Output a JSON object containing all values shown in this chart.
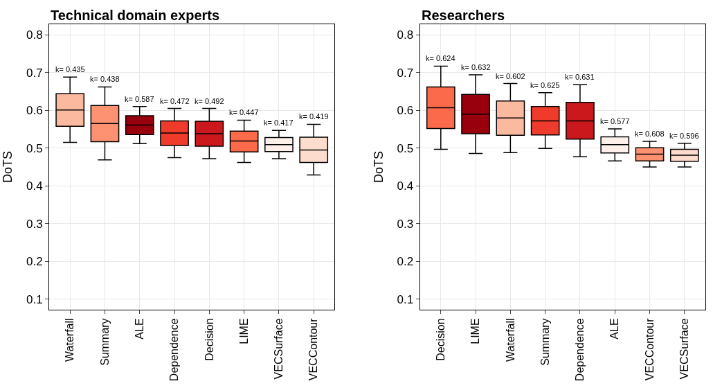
{
  "chart_data": [
    {
      "type": "box",
      "title": "Technical domain experts",
      "ylabel": "DoTS",
      "categories": [
        "Waterfall",
        "Summary",
        "ALE",
        "Dependence",
        "Decision",
        "LIME",
        "VECSurface",
        "VECContour"
      ],
      "colors": [
        "#fbb99f",
        "#fc9272",
        "#99000d",
        "#ef3b2c",
        "#cb181d",
        "#fb6a4a",
        "#fff0eb",
        "#fcdccd"
      ],
      "boxes": [
        {
          "low": 0.515,
          "q1": 0.558,
          "median": 0.601,
          "q3": 0.644,
          "high": 0.688
        },
        {
          "low": 0.469,
          "q1": 0.517,
          "median": 0.565,
          "q3": 0.613,
          "high": 0.662
        },
        {
          "low": 0.512,
          "q1": 0.536,
          "median": 0.561,
          "q3": 0.586,
          "high": 0.61
        },
        {
          "low": 0.475,
          "q1": 0.507,
          "median": 0.54,
          "q3": 0.572,
          "high": 0.605
        },
        {
          "low": 0.472,
          "q1": 0.505,
          "median": 0.538,
          "q3": 0.571,
          "high": 0.605
        },
        {
          "low": 0.462,
          "q1": 0.49,
          "median": 0.519,
          "q3": 0.545,
          "high": 0.574
        },
        {
          "low": 0.472,
          "q1": 0.491,
          "median": 0.509,
          "q3": 0.528,
          "high": 0.547
        },
        {
          "low": 0.429,
          "q1": 0.462,
          "median": 0.495,
          "q3": 0.529,
          "high": 0.563
        }
      ],
      "annotations": [
        {
          "text": "k= 0.435",
          "x": "Waterfall",
          "y": 0.688
        },
        {
          "text": "k= 0.438",
          "x": "Summary",
          "y": 0.662
        },
        {
          "text": "k= 0.587",
          "x": "ALE",
          "y": 0.61
        },
        {
          "text": "k= 0.472",
          "x": "Dependence",
          "y": 0.605
        },
        {
          "text": "k= 0.492",
          "x": "Decision",
          "y": 0.605
        },
        {
          "text": "k= 0.447",
          "x": "LIME",
          "y": 0.574
        },
        {
          "text": "k= 0.417",
          "x": "VECSurface",
          "y": 0.547
        },
        {
          "text": "k= 0.419",
          "x": "VECContour",
          "y": 0.563
        }
      ],
      "ylim": [
        0.072,
        0.828
      ],
      "yticks": [
        0.1,
        0.2,
        0.3,
        0.4,
        0.5,
        0.6,
        0.7,
        0.8
      ],
      "grid": true
    },
    {
      "type": "box",
      "title": "Researchers",
      "ylabel": "DoTS",
      "categories": [
        "Decision",
        "LIME",
        "Waterfall",
        "Summary",
        "Dependence",
        "ALE",
        "VECContour",
        "VECSurface"
      ],
      "colors": [
        "#fb6a4a",
        "#99000d",
        "#fbb99f",
        "#ef3b2c",
        "#cb181d",
        "#fff0eb",
        "#fc9272",
        "#fcdccd"
      ],
      "boxes": [
        {
          "low": 0.497,
          "q1": 0.552,
          "median": 0.607,
          "q3": 0.662,
          "high": 0.717
        },
        {
          "low": 0.486,
          "q1": 0.538,
          "median": 0.59,
          "q3": 0.642,
          "high": 0.694
        },
        {
          "low": 0.488,
          "q1": 0.534,
          "median": 0.58,
          "q3": 0.625,
          "high": 0.671
        },
        {
          "low": 0.499,
          "q1": 0.535,
          "median": 0.572,
          "q3": 0.61,
          "high": 0.647
        },
        {
          "low": 0.477,
          "q1": 0.524,
          "median": 0.572,
          "q3": 0.621,
          "high": 0.668
        },
        {
          "low": 0.466,
          "q1": 0.487,
          "median": 0.509,
          "q3": 0.53,
          "high": 0.551
        },
        {
          "low": 0.45,
          "q1": 0.466,
          "median": 0.484,
          "q3": 0.501,
          "high": 0.518
        },
        {
          "low": 0.45,
          "q1": 0.465,
          "median": 0.481,
          "q3": 0.497,
          "high": 0.513
        }
      ],
      "annotations": [
        {
          "text": "k= 0.624",
          "x": "Decision",
          "y": 0.717
        },
        {
          "text": "k= 0.632",
          "x": "LIME",
          "y": 0.694
        },
        {
          "text": "k= 0.602",
          "x": "Waterfall",
          "y": 0.671
        },
        {
          "text": "k= 0.625",
          "x": "Summary",
          "y": 0.647
        },
        {
          "text": "k= 0.631",
          "x": "Dependence",
          "y": 0.668
        },
        {
          "text": "k= 0.577",
          "x": "ALE",
          "y": 0.551
        },
        {
          "text": "k= 0.608",
          "x": "VECContour",
          "y": 0.518
        },
        {
          "text": "k= 0.596",
          "x": "VECSurface",
          "y": 0.513
        }
      ],
      "ylim": [
        0.072,
        0.828
      ],
      "yticks": [
        0.1,
        0.2,
        0.3,
        0.4,
        0.5,
        0.6,
        0.7,
        0.8
      ],
      "grid": true
    }
  ]
}
